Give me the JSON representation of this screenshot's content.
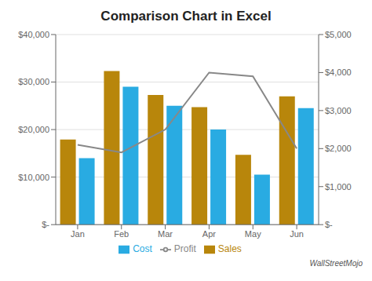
{
  "chart_data": {
    "type": "bar",
    "title": "Comparison Chart in Excel",
    "categories": [
      "Jan",
      "Feb",
      "Mar",
      "Apr",
      "May",
      "Jun"
    ],
    "series": [
      {
        "name": "Sales",
        "color": "#B8860B",
        "values": [
          17903,
          32308,
          27285,
          24738,
          14705,
          27000
        ]
      },
      {
        "name": "Cost",
        "color": "#29ABE2",
        "values": [
          14000,
          29000,
          25000,
          20000,
          10500,
          24500
        ]
      },
      {
        "name": "Profit",
        "color": "#888888",
        "type": "line",
        "axis": "y2",
        "values": [
          2100,
          1900,
          2500,
          4000,
          3900,
          2000
        ]
      }
    ],
    "ylim": [
      0,
      40000
    ],
    "yticks": [
      {
        "value": 0,
        "label": "$-"
      },
      {
        "value": 10000,
        "label": "$10,000"
      },
      {
        "value": 20000,
        "label": "$20,000"
      },
      {
        "value": 30000,
        "label": "$30,000"
      },
      {
        "value": 40000,
        "label": "$40,000"
      }
    ],
    "y2lim": [
      0,
      5000
    ],
    "y2ticks": [
      {
        "value": 0,
        "label": "$-"
      },
      {
        "value": 1000,
        "label": "$1,000"
      },
      {
        "value": 2000,
        "label": "$2,000"
      },
      {
        "value": 3000,
        "label": "$3,000"
      },
      {
        "value": 4000,
        "label": "$4,000"
      },
      {
        "value": 5000,
        "label": "$5,000"
      }
    ],
    "grid": true,
    "legend": "bottom",
    "annotations": [
      "WallStreetMojo"
    ]
  }
}
